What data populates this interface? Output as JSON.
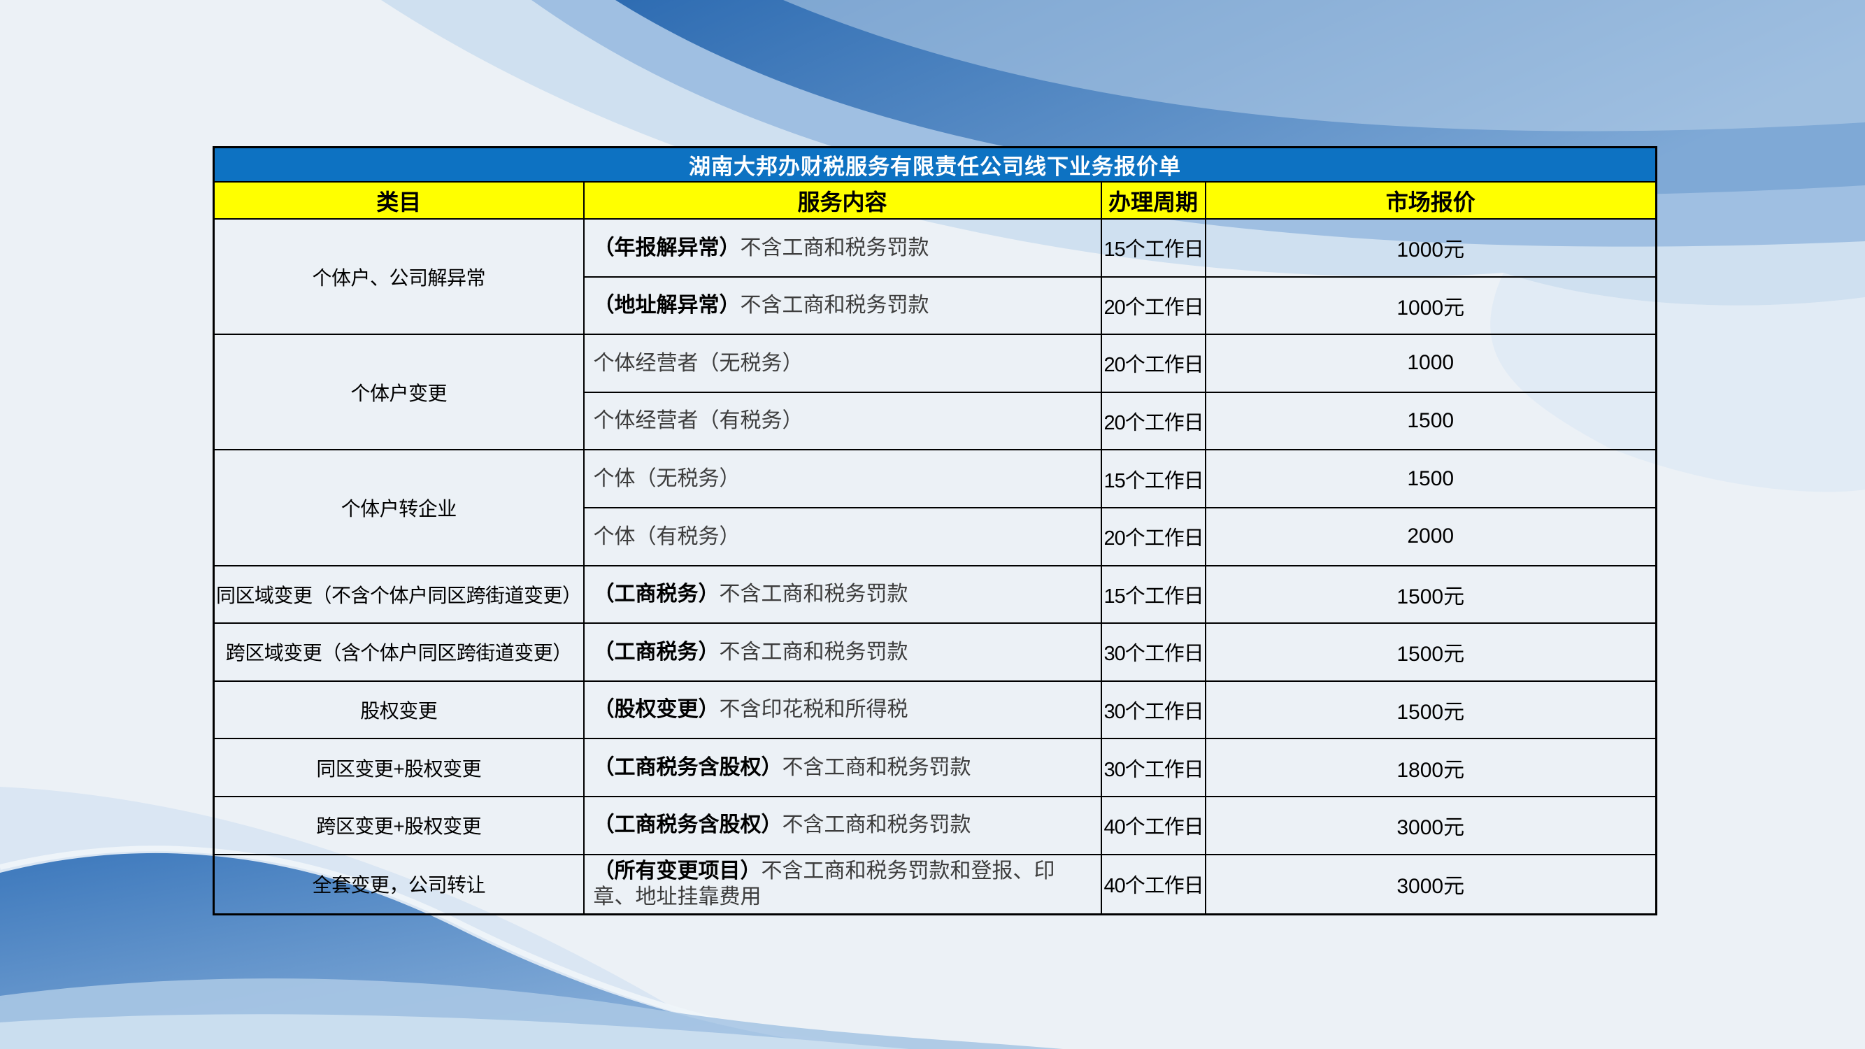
{
  "table": {
    "title": "湖南大邦办财税服务有限责任公司线下业务报价单",
    "columns": [
      "类目",
      "服务内容",
      "办理周期",
      "市场报价"
    ],
    "rows": [
      {
        "category": "个体户、公司解异常",
        "rowspan": 2,
        "service_bold": "（年报解异常）",
        "service_rest": "不含工商和税务罚款",
        "period": "15个工作日",
        "price": "1000元"
      },
      {
        "category": null,
        "service_bold": "（地址解异常）",
        "service_rest": "不含工商和税务罚款",
        "period": "20个工作日",
        "price": "1000元"
      },
      {
        "category": "个体户变更",
        "rowspan": 2,
        "service_bold": "",
        "service_rest": "个体经营者（无税务）",
        "period": "20个工作日",
        "price": "1000"
      },
      {
        "category": null,
        "service_bold": "",
        "service_rest": "个体经营者（有税务）",
        "period": "20个工作日",
        "price": "1500"
      },
      {
        "category": "个体户转企业",
        "rowspan": 2,
        "service_bold": "",
        "service_rest": "个体（无税务）",
        "period": "15个工作日",
        "price": "1500"
      },
      {
        "category": null,
        "service_bold": "",
        "service_rest": "个体（有税务）",
        "period": "20个工作日",
        "price": "2000"
      },
      {
        "category": "同区域变更（不含个体户同区跨街道变更）",
        "rowspan": 1,
        "service_bold": "（工商税务）",
        "service_rest": "不含工商和税务罚款",
        "period": "15个工作日",
        "price": "1500元"
      },
      {
        "category": "跨区域变更（含个体户同区跨街道变更）",
        "rowspan": 1,
        "service_bold": "（工商税务）",
        "service_rest": "不含工商和税务罚款",
        "period": "30个工作日",
        "price": "1500元"
      },
      {
        "category": "股权变更",
        "rowspan": 1,
        "service_bold": "（股权变更）",
        "service_rest": "不含印花税和所得税",
        "period": "30个工作日",
        "price": "1500元"
      },
      {
        "category": "同区变更+股权变更",
        "rowspan": 1,
        "service_bold": "（工商税务含股权）",
        "service_rest": "不含工商和税务罚款",
        "period": "30个工作日",
        "price": "1800元"
      },
      {
        "category": "跨区变更+股权变更",
        "rowspan": 1,
        "service_bold": "（工商税务含股权）",
        "service_rest": "不含工商和税务罚款",
        "period": "40个工作日",
        "price": "3000元"
      },
      {
        "category": "全套变更，公司转让",
        "rowspan": 1,
        "service_bold": "（所有变更项目）",
        "service_rest": "不含工商和税务罚款和登报、印章、地址挂靠费用",
        "period": "40个工作日",
        "price": "3000元"
      }
    ]
  },
  "colors": {
    "title_bar": "#0D72C2",
    "header_bar": "#FFFF00",
    "page_background": "#ECF1F6",
    "border": "#000000",
    "wave_light": "#CFE0F0",
    "wave_mid": "#9FBFE2",
    "wave_deep": "#2E6CB2",
    "secondary_text": "#3d3d3d"
  }
}
